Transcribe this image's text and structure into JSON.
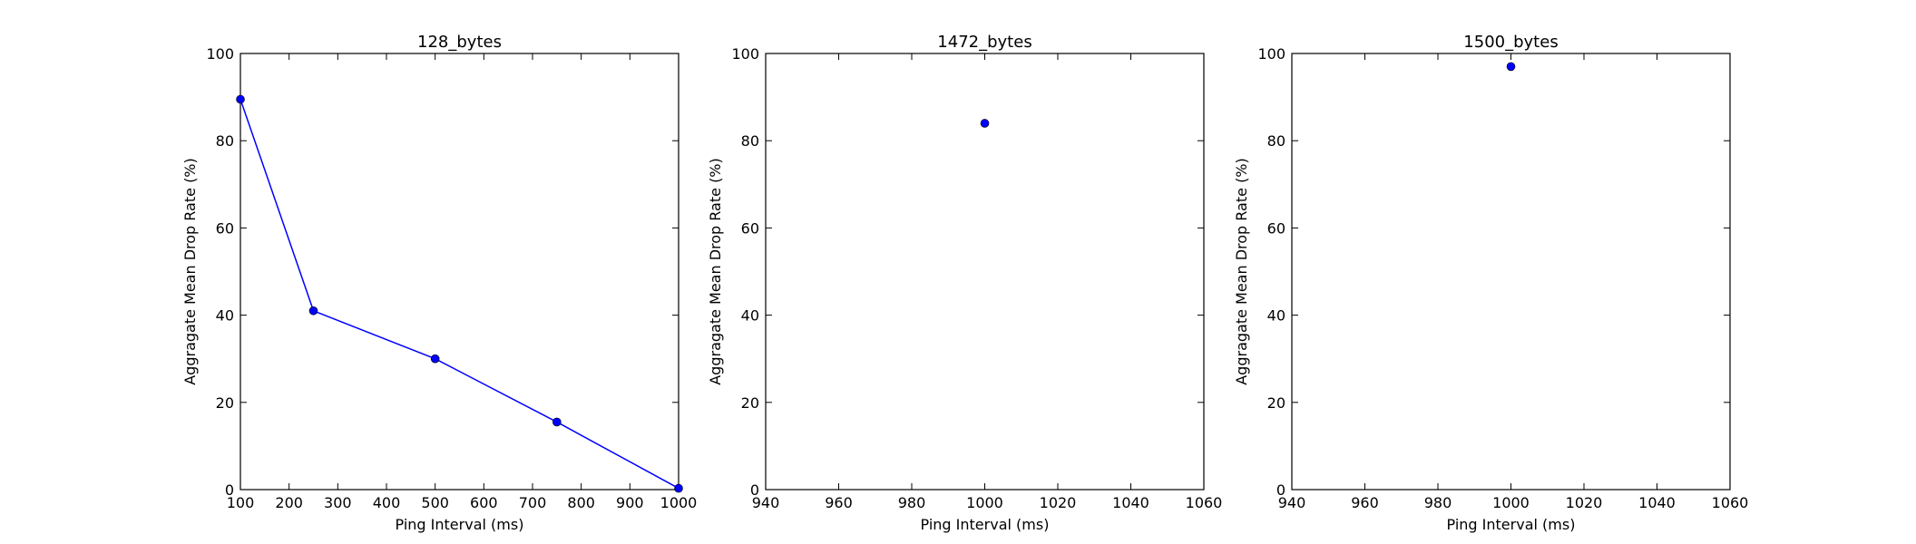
{
  "chart_data": [
    {
      "type": "line",
      "title": "128_bytes",
      "xlabel": "Ping Interval (ms)",
      "ylabel": "Aggragate Mean Drop Rate (%)",
      "xlim": [
        100,
        1000
      ],
      "ylim": [
        0,
        100
      ],
      "xticks": [
        100,
        200,
        300,
        400,
        500,
        600,
        700,
        800,
        900,
        1000
      ],
      "yticks": [
        0,
        20,
        40,
        60,
        80,
        100
      ],
      "grid": false,
      "series": [
        {
          "color": "#0000ff",
          "x": [
            100,
            250,
            500,
            750,
            1000
          ],
          "y": [
            89.5,
            41.0,
            30.0,
            15.5,
            0.3
          ]
        }
      ]
    },
    {
      "type": "scatter",
      "title": "1472_bytes",
      "xlabel": "Ping Interval (ms)",
      "ylabel": "Aggragate Mean Drop Rate (%)",
      "xlim": [
        940,
        1060
      ],
      "ylim": [
        0,
        100
      ],
      "xticks": [
        940,
        960,
        980,
        1000,
        1020,
        1040,
        1060
      ],
      "yticks": [
        0,
        20,
        40,
        60,
        80,
        100
      ],
      "grid": false,
      "series": [
        {
          "color": "#0000ff",
          "x": [
            1000
          ],
          "y": [
            84.0
          ]
        }
      ]
    },
    {
      "type": "scatter",
      "title": "1500_bytes",
      "xlabel": "Ping Interval (ms)",
      "ylabel": "Aggragate Mean Drop Rate (%)",
      "xlim": [
        940,
        1060
      ],
      "ylim": [
        0,
        100
      ],
      "xticks": [
        940,
        960,
        980,
        1000,
        1020,
        1040,
        1060
      ],
      "yticks": [
        0,
        20,
        40,
        60,
        80,
        100
      ],
      "grid": false,
      "series": [
        {
          "color": "#0000ff",
          "x": [
            1000
          ],
          "y": [
            97.0
          ]
        }
      ]
    }
  ]
}
